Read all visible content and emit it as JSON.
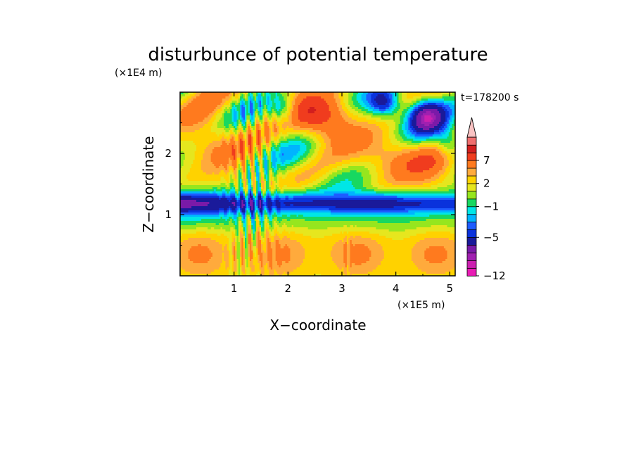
{
  "chart_data": {
    "type": "heatmap",
    "title": "disturbunce of potential temperature",
    "xlabel": "X−coordinate",
    "ylabel": "Z−coordinate",
    "x_unit": "(×1E5 m)",
    "y_unit": "(×1E4 m)",
    "time_label": "t=178200 s",
    "xlim": [
      0,
      5.1
    ],
    "ylim": [
      0,
      3.0
    ],
    "x_ticks": [
      1,
      2,
      3,
      4,
      5
    ],
    "x_tick_labels": [
      "1",
      "2",
      "3",
      "4",
      "5"
    ],
    "y_ticks": [
      1,
      2
    ],
    "y_tick_labels": [
      "1",
      "2"
    ],
    "colorbar": {
      "levels": [
        -12,
        -11,
        -10,
        -8,
        -6,
        -5,
        -4,
        -3,
        -2,
        -1,
        0,
        1,
        2,
        3,
        5,
        7,
        9,
        11
      ],
      "colors": [
        "#e81bb4",
        "#cc20b0",
        "#a020b0",
        "#7a1aa8",
        "#1a1a9a",
        "#0a32dc",
        "#1e5cff",
        "#00b4ff",
        "#00e6e6",
        "#18d860",
        "#96e61e",
        "#e6e61e",
        "#ffd200",
        "#ffaa3c",
        "#ff7a1e",
        "#f03c1e",
        "#d21e1e",
        "#f06e6e",
        "#fac3c3"
      ],
      "labeled_ticks": [
        {
          "value": 7,
          "label": "7"
        },
        {
          "value": 2,
          "label": "2"
        },
        {
          "value": -1,
          "label": "−1"
        },
        {
          "value": -5,
          "label": "−5"
        },
        {
          "value": -12,
          "label": "−12"
        }
      ]
    }
  }
}
